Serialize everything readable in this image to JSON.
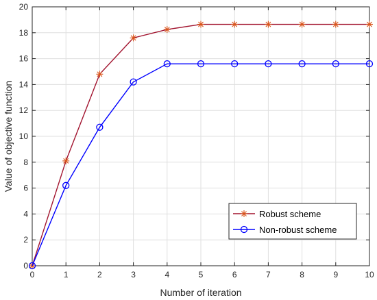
{
  "chart_data": {
    "type": "line",
    "xlabel": "Number of iteration",
    "ylabel": "Value of objective function",
    "xlim": [
      0,
      10
    ],
    "ylim": [
      0,
      20
    ],
    "x_ticks": [
      0,
      1,
      2,
      3,
      4,
      5,
      6,
      7,
      8,
      9,
      10
    ],
    "y_ticks": [
      0,
      2,
      4,
      6,
      8,
      10,
      12,
      14,
      16,
      18,
      20
    ],
    "grid": true,
    "legend_position": "bottom-right",
    "x": [
      0,
      1,
      2,
      3,
      4,
      5,
      6,
      7,
      8,
      9,
      10
    ],
    "series": [
      {
        "name": "Robust scheme",
        "values": [
          0,
          8.1,
          14.8,
          17.6,
          18.25,
          18.65,
          18.65,
          18.65,
          18.65,
          18.65,
          18.65
        ],
        "color": "#a2142f",
        "marker_color": "#d95319",
        "marker": "asterisk"
      },
      {
        "name": "Non-robust scheme",
        "values": [
          0,
          6.2,
          10.7,
          14.2,
          15.6,
          15.6,
          15.6,
          15.6,
          15.6,
          15.6,
          15.6
        ],
        "color": "#0000ff",
        "marker_color": "#0000ff",
        "marker": "circle"
      }
    ]
  }
}
